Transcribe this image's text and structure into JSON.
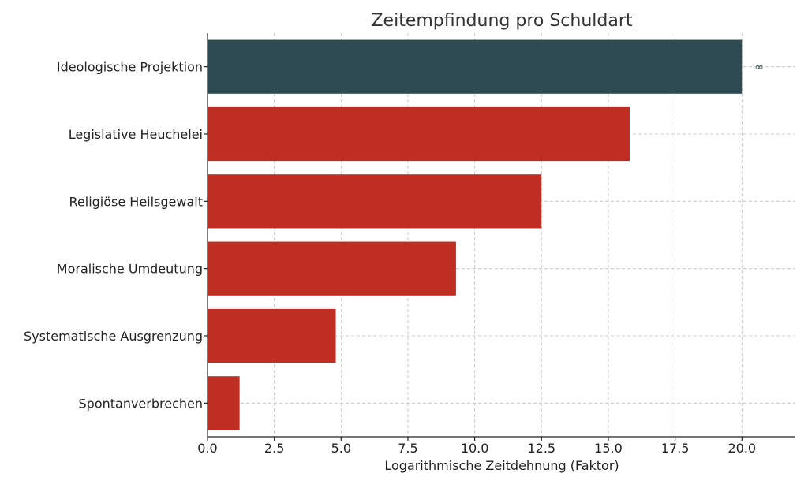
{
  "chart_data": {
    "type": "bar",
    "orientation": "horizontal",
    "title": "Zeitempfindung pro Schuldart",
    "xlabel": "Logarithmische Zeitdehnung (Faktor)",
    "ylabel": "",
    "xlim": [
      0,
      22
    ],
    "x_ticks": [
      "0.0",
      "2.5",
      "5.0",
      "7.5",
      "10.0",
      "12.5",
      "15.0",
      "17.5",
      "20.0"
    ],
    "x_tick_values": [
      0,
      2.5,
      5,
      7.5,
      10,
      12.5,
      15,
      17.5,
      20
    ],
    "grid": true,
    "categories": [
      "Ideologische Projektion",
      "Legislative Heuchelei",
      "Religiöse Heilsgewalt",
      "Moralische Umdeutung",
      "Systematische Ausgrenzung",
      "Spontanverbrechen"
    ],
    "values": [
      20,
      15.8,
      12.5,
      9.3,
      4.8,
      1.2
    ],
    "colors": [
      "#2e4a52",
      "#c02e23",
      "#c02e23",
      "#c02e23",
      "#c02e23",
      "#c0b2e23"
    ],
    "annotations": [
      {
        "category": "Ideologische Projektion",
        "text": "∞"
      }
    ]
  }
}
